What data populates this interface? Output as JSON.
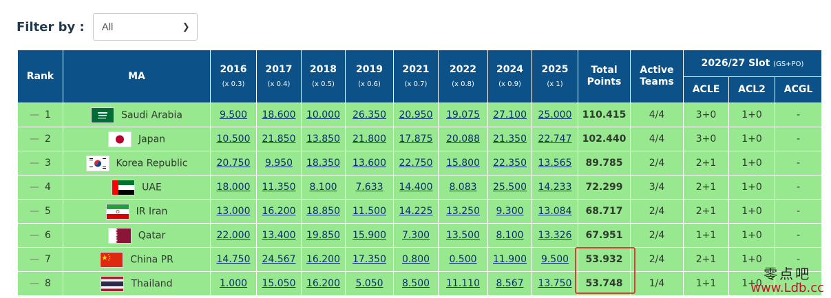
{
  "filter": {
    "label": "Filter by :",
    "selected": "All"
  },
  "header": {
    "rank": "Rank",
    "ma": "MA",
    "seasons": [
      {
        "year": "2016",
        "weight": "(x 0.3)"
      },
      {
        "year": "2017",
        "weight": "(x 0.4)"
      },
      {
        "year": "2018",
        "weight": "(x 0.5)"
      },
      {
        "year": "2019",
        "weight": "(x 0.6)"
      },
      {
        "year": "2021",
        "weight": "(x 0.7)"
      },
      {
        "year": "2022",
        "weight": "(x 0.8)"
      },
      {
        "year": "2024",
        "weight": "(x 0.9)"
      },
      {
        "year": "2025",
        "weight": "(x 1)"
      }
    ],
    "total_line1": "Total",
    "total_line2": "Points",
    "active_line1": "Active",
    "active_line2": "Teams",
    "slot_title": "2026/27 Slot",
    "slot_note": "(GS+PO)",
    "slot_cols": [
      "ACLE",
      "ACL2",
      "ACGL"
    ]
  },
  "rows": [
    {
      "rank": "1",
      "dash": "—",
      "name": "Saudi Arabia",
      "flag": "saudi-arabia",
      "points": [
        "9.500",
        "18.600",
        "10.000",
        "26.350",
        "20.950",
        "19.075",
        "27.100",
        "25.000"
      ],
      "total": "110.415",
      "active": "4/4",
      "acle": "3+0",
      "acl2": "1+0",
      "acgl": "-"
    },
    {
      "rank": "2",
      "dash": "—",
      "name": "Japan",
      "flag": "japan",
      "points": [
        "10.500",
        "21.850",
        "13.850",
        "21.800",
        "17.875",
        "20.088",
        "21.350",
        "22.747"
      ],
      "total": "102.440",
      "active": "4/4",
      "acle": "3+0",
      "acl2": "1+0",
      "acgl": "-"
    },
    {
      "rank": "3",
      "dash": "—",
      "name": "Korea Republic",
      "flag": "korea",
      "points": [
        "20.750",
        "9.950",
        "18.350",
        "13.600",
        "22.750",
        "15.800",
        "22.350",
        "13.565"
      ],
      "total": "89.785",
      "active": "2/4",
      "acle": "2+1",
      "acl2": "1+0",
      "acgl": "-"
    },
    {
      "rank": "4",
      "dash": "—",
      "name": "UAE",
      "flag": "uae",
      "points": [
        "18.000",
        "11.350",
        "8.100",
        "7.633",
        "14.400",
        "8.083",
        "25.500",
        "14.233"
      ],
      "total": "72.299",
      "active": "3/4",
      "acle": "2+1",
      "acl2": "1+0",
      "acgl": "-"
    },
    {
      "rank": "5",
      "dash": "—",
      "name": "IR Iran",
      "flag": "iran",
      "points": [
        "13.000",
        "16.200",
        "18.850",
        "11.500",
        "14.225",
        "13.250",
        "9.300",
        "13.084"
      ],
      "total": "68.717",
      "active": "2/4",
      "acle": "2+1",
      "acl2": "1+0",
      "acgl": "-"
    },
    {
      "rank": "6",
      "dash": "—",
      "name": "Qatar",
      "flag": "qatar",
      "points": [
        "22.000",
        "13.400",
        "19.850",
        "15.900",
        "7.300",
        "13.500",
        "8.100",
        "13.326"
      ],
      "total": "67.951",
      "active": "2/4",
      "acle": "1+1",
      "acl2": "1+0",
      "acgl": "-"
    },
    {
      "rank": "7",
      "dash": "—",
      "name": "China PR",
      "flag": "china",
      "points": [
        "14.750",
        "24.567",
        "16.200",
        "17.350",
        "0.800",
        "0.500",
        "11.900",
        "9.500"
      ],
      "total": "53.932",
      "active": "2/4",
      "acle": "2+1",
      "acl2": "1+0",
      "acgl": "-"
    },
    {
      "rank": "8",
      "dash": "—",
      "name": "Thailand",
      "flag": "thailand",
      "points": [
        "1.000",
        "15.050",
        "16.200",
        "5.050",
        "8.500",
        "11.110",
        "8.567",
        "13.750"
      ],
      "total": "53.748",
      "active": "1/4",
      "acle": "1+1",
      "acl2": "1+0",
      "acgl": "-"
    }
  ],
  "colors": {
    "header_bg": "#0c5289",
    "row_bg": "#98e88f",
    "highlight": "#e03a3a",
    "watermark_url": "#c8102e"
  },
  "watermark": {
    "cn": "零点吧",
    "url": "www.Ldb.cc"
  }
}
